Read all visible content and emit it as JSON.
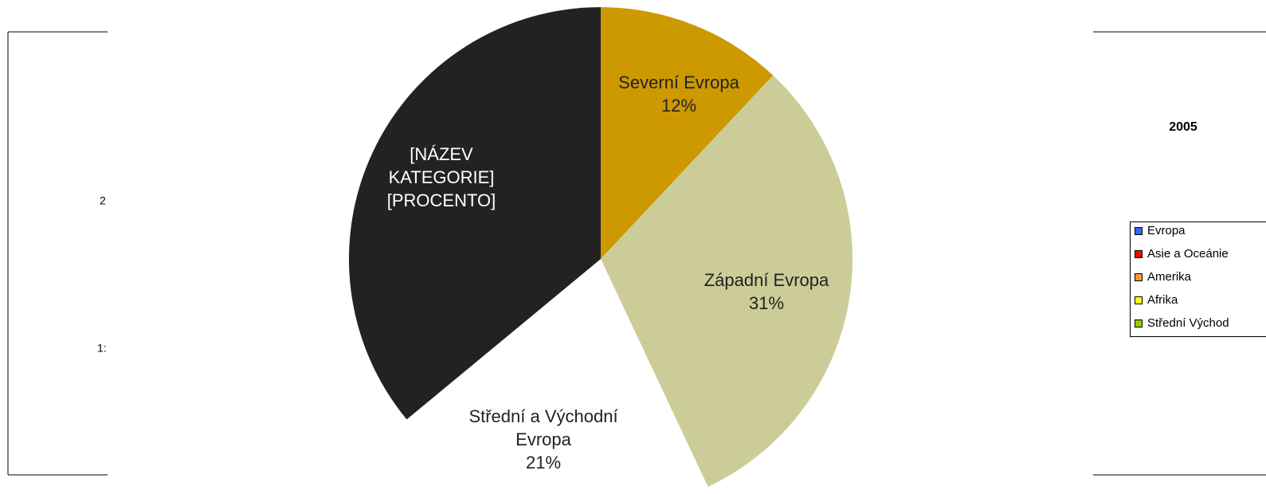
{
  "chart_data": {
    "type": "pie",
    "categories": [
      [
        "Severní Evropa"
      ],
      [
        "Západní Evropa"
      ],
      [
        "Střední a Východní",
        "Evropa"
      ],
      [
        "[NÁZEV",
        "KATEGORIE]"
      ]
    ],
    "values": [
      12,
      31,
      21,
      36
    ],
    "value_labels": [
      "12%",
      "31%",
      "21%",
      "[PROCENTO]"
    ],
    "colors": [
      "#cc9900",
      "#cccc99",
      "#ffffff",
      "#222222"
    ],
    "label_colors": [
      "#222222",
      "#222222",
      "#222222",
      "#ffffff"
    ]
  },
  "background_chart": {
    "axis_labels": [
      "2",
      "1:"
    ],
    "title": "2005",
    "legend": [
      {
        "name": "Evropa",
        "color": "#3366ff"
      },
      {
        "name": "Asie a Oceánie",
        "color": "#ff0000"
      },
      {
        "name": "Amerika",
        "color": "#ff9933"
      },
      {
        "name": "Afrika",
        "color": "#ffff00"
      },
      {
        "name": "Střední Východ",
        "color": "#99cc00"
      }
    ]
  }
}
